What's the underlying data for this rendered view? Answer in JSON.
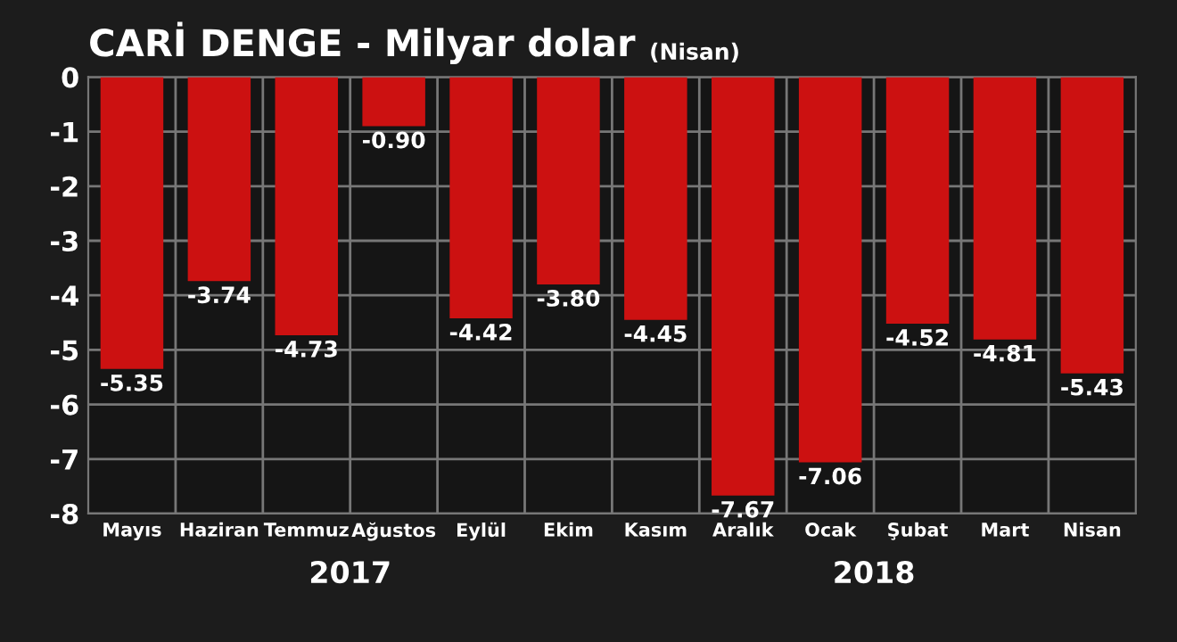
{
  "chart_data": {
    "type": "bar",
    "title": "CARİ DENGE - Milyar dolar",
    "subtitle": "(Nisan)",
    "categories": [
      "Mayıs",
      "Haziran",
      "Temmuz",
      "Ağustos",
      "Eylül",
      "Ekim",
      "Kasım",
      "Aralık",
      "Ocak",
      "Şubat",
      "Mart",
      "Nisan"
    ],
    "values": [
      -5.35,
      -3.74,
      -4.73,
      -0.9,
      -4.42,
      -3.8,
      -4.45,
      -7.67,
      -7.06,
      -4.52,
      -4.81,
      -5.43
    ],
    "value_labels": [
      "-5.35",
      "-3.74",
      "-4.73",
      "-0.90",
      "-4.42",
      "-3.80",
      "-4.45",
      "-7.67",
      "-7.06",
      "-4.52",
      "-4.81",
      "-5.43"
    ],
    "color": "#cc1111",
    "ylim": [
      -8,
      0
    ],
    "yticks": [
      {
        "value": 0,
        "label": "0"
      },
      {
        "value": -1,
        "label": "-1"
      },
      {
        "value": -2,
        "label": "-2"
      },
      {
        "value": -3,
        "label": "-3"
      },
      {
        "value": -4,
        "label": "-4"
      },
      {
        "value": -5,
        "label": "-5"
      },
      {
        "value": -6,
        "label": "-6"
      },
      {
        "value": -7,
        "label": "-7"
      },
      {
        "value": -8,
        "label": "-8"
      }
    ],
    "grid": true,
    "annotations": [
      "2017",
      "2018"
    ]
  }
}
